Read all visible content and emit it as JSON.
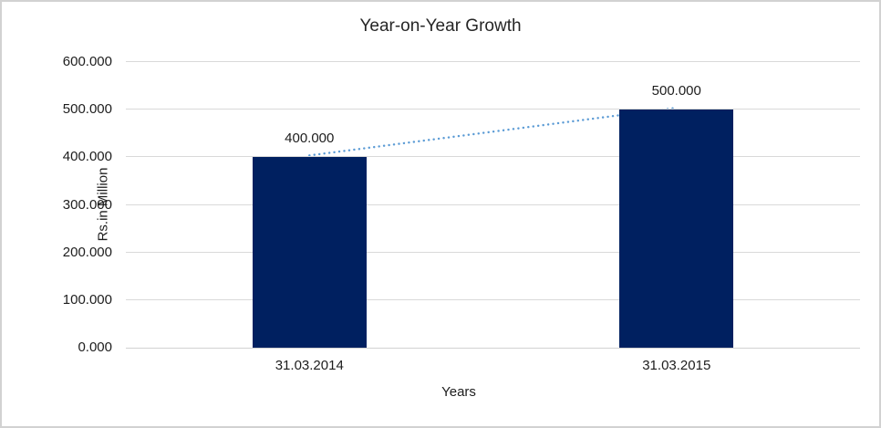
{
  "frame": {
    "border_color": "#d2d2d2",
    "background": "#ffffff"
  },
  "chart_data": {
    "type": "bar",
    "title": "Year-on-Year Growth",
    "xlabel": "Years",
    "ylabel": "Rs.in Million",
    "categories": [
      "31.03.2014",
      "31.03.2015"
    ],
    "values": [
      400,
      500
    ],
    "data_labels": [
      "400.000",
      "500.000"
    ],
    "ylim": [
      0,
      600
    ],
    "ytick_step": 100,
    "ytick_labels": [
      "0.000",
      "100.000",
      "200.000",
      "300.000",
      "400.000",
      "500.000",
      "600.000"
    ],
    "grid": true,
    "legend": "none",
    "colors": {
      "bar": "#002060",
      "trendline": "#5B9BD5",
      "gridline": "#d9d9d9",
      "text": "#1d1d1d"
    },
    "trendline": {
      "style": "dotted",
      "color": "#5B9BD5",
      "from_value": 400,
      "to_value": 500
    }
  }
}
